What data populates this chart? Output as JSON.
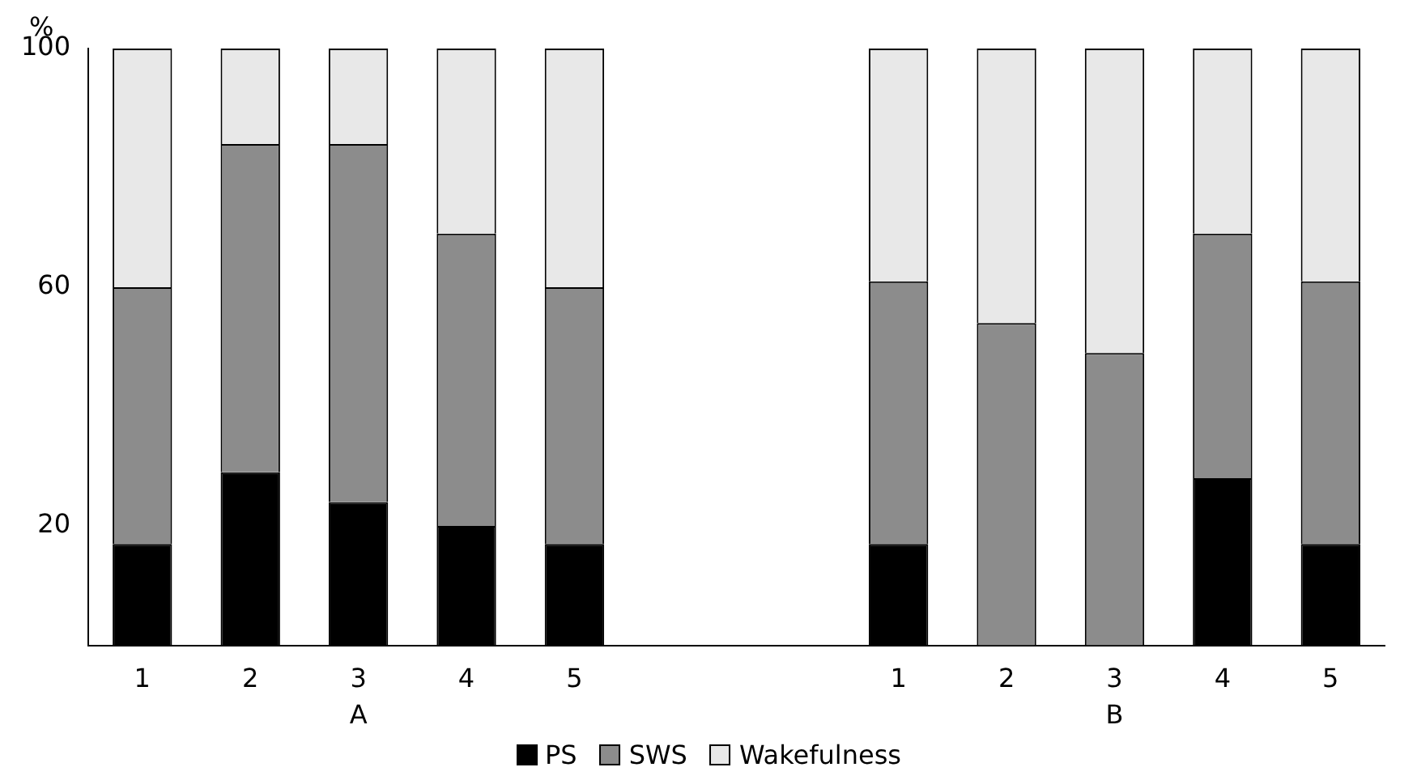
{
  "chart_data": {
    "type": "bar",
    "stacked": true,
    "ylabel": "%",
    "categories": [
      "1",
      "2",
      "3",
      "4",
      "5",
      null,
      null,
      "1",
      "2",
      "3",
      "4",
      "5"
    ],
    "series": [
      {
        "name": "PS",
        "color": "#000000",
        "values": [
          17,
          29,
          24,
          20,
          17,
          null,
          null,
          17,
          0,
          0,
          28,
          17
        ]
      },
      {
        "name": "SWS",
        "color": "#8c8c8c",
        "values": [
          43,
          55,
          60,
          49,
          43,
          null,
          null,
          44,
          54,
          49,
          41,
          44
        ]
      },
      {
        "name": "Wakefulness",
        "color": "#e8e8e8",
        "values": [
          40,
          16,
          16,
          31,
          40,
          null,
          null,
          39,
          46,
          51,
          31,
          39
        ]
      }
    ],
    "ylim": [
      0,
      100
    ],
    "yticks": [
      20,
      60,
      100
    ],
    "grid": false,
    "legend": "bottom",
    "annotations": [
      "A",
      "B"
    ]
  }
}
